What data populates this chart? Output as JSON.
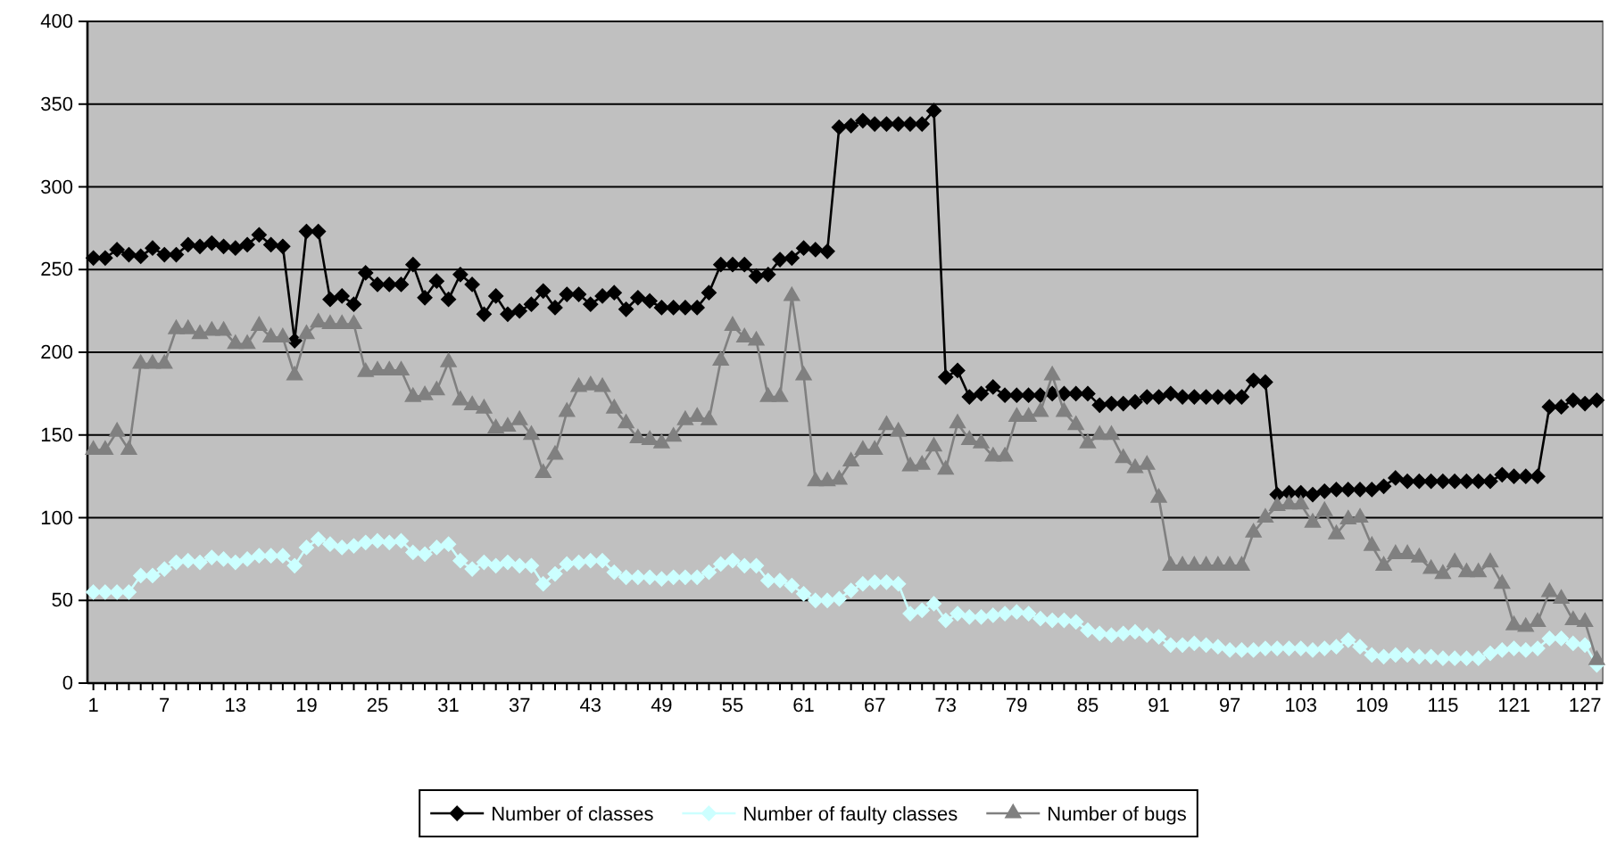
{
  "chart_data": {
    "type": "line",
    "categories": [
      "1",
      null,
      null,
      null,
      null,
      null,
      "7",
      null,
      null,
      null,
      null,
      null,
      "13",
      null,
      null,
      null,
      null,
      null,
      "19",
      null,
      null,
      null,
      null,
      null,
      "25",
      null,
      null,
      null,
      null,
      null,
      "31",
      null,
      null,
      null,
      null,
      null,
      "37",
      null,
      null,
      null,
      null,
      null,
      "43",
      null,
      null,
      null,
      null,
      null,
      "49",
      null,
      null,
      null,
      null,
      null,
      "55",
      null,
      null,
      null,
      null,
      null,
      "61",
      null,
      null,
      null,
      null,
      null,
      "67",
      null,
      null,
      null,
      null,
      null,
      "73",
      null,
      null,
      null,
      null,
      null,
      "79",
      null,
      null,
      null,
      null,
      null,
      "85",
      null,
      null,
      null,
      null,
      null,
      "91",
      null,
      null,
      null,
      null,
      null,
      "97",
      null,
      null,
      null,
      null,
      null,
      "103",
      null,
      null,
      null,
      null,
      null,
      "109",
      null,
      null,
      null,
      null,
      null,
      "115",
      null,
      null,
      null,
      null,
      null,
      "121",
      null,
      null,
      null,
      null,
      null,
      "127",
      null
    ],
    "series": [
      {
        "name": "Number of classes",
        "color": "#000000",
        "marker": "diamond",
        "values": [
          257,
          257,
          262,
          259,
          258,
          263,
          259,
          259,
          265,
          264,
          266,
          264,
          263,
          265,
          271,
          265,
          264,
          207,
          273,
          273,
          232,
          234,
          229,
          248,
          241,
          241,
          241,
          253,
          233,
          243,
          232,
          247,
          241,
          223,
          234,
          223,
          225,
          229,
          237,
          227,
          235,
          235,
          229,
          234,
          236,
          226,
          233,
          231,
          227,
          227,
          227,
          227,
          236,
          253,
          253,
          253,
          246,
          247,
          256,
          257,
          263,
          262,
          261,
          336,
          337,
          340,
          338,
          338,
          338,
          338,
          338,
          346,
          185,
          189,
          173,
          175,
          179,
          174,
          174,
          174,
          174,
          175,
          175,
          175,
          175,
          168,
          169,
          169,
          170,
          173,
          173,
          175,
          173,
          173,
          173,
          173,
          173,
          173,
          183,
          182,
          114,
          115,
          115,
          114,
          116,
          117,
          117,
          117,
          117,
          119,
          124,
          122,
          122,
          122,
          122,
          122,
          122,
          122,
          122,
          126,
          125,
          125,
          125,
          167,
          167,
          171,
          169,
          171
        ]
      },
      {
        "name": "Number of faulty classes",
        "color": "#ccffff",
        "marker": "diamond",
        "values": [
          55,
          55,
          55,
          55,
          65,
          65,
          69,
          73,
          74,
          73,
          76,
          75,
          73,
          75,
          77,
          77,
          77,
          71,
          82,
          87,
          84,
          82,
          83,
          85,
          86,
          85,
          86,
          79,
          78,
          82,
          84,
          74,
          69,
          73,
          71,
          73,
          71,
          71,
          60,
          66,
          72,
          73,
          74,
          74,
          67,
          64,
          64,
          64,
          63,
          64,
          64,
          64,
          67,
          72,
          74,
          71,
          71,
          62,
          62,
          59,
          54,
          50,
          50,
          51,
          56,
          60,
          61,
          61,
          60,
          42,
          44,
          48,
          38,
          42,
          40,
          40,
          41,
          42,
          43,
          42,
          39,
          38,
          38,
          37,
          32,
          30,
          29,
          30,
          31,
          29,
          28,
          23,
          23,
          24,
          23,
          22,
          20,
          20,
          20,
          21,
          21,
          21,
          21,
          20,
          21,
          22,
          26,
          22,
          17,
          16,
          17,
          17,
          16,
          16,
          15,
          15,
          15,
          15,
          18,
          20,
          21,
          20,
          21,
          27,
          27,
          24,
          23,
          11
        ]
      },
      {
        "name": "Number of bugs",
        "color": "#808080",
        "marker": "triangle",
        "values": [
          141,
          141,
          152,
          141,
          193,
          193,
          193,
          214,
          214,
          211,
          213,
          213,
          205,
          205,
          216,
          209,
          209,
          186,
          211,
          218,
          217,
          217,
          217,
          188,
          189,
          189,
          189,
          173,
          174,
          177,
          194,
          171,
          168,
          166,
          154,
          155,
          159,
          150,
          127,
          138,
          164,
          179,
          180,
          179,
          166,
          157,
          148,
          147,
          145,
          149,
          159,
          161,
          159,
          195,
          216,
          209,
          207,
          173,
          173,
          234,
          186,
          122,
          122,
          123,
          134,
          141,
          141,
          156,
          152,
          131,
          132,
          143,
          129,
          157,
          147,
          145,
          137,
          137,
          161,
          161,
          164,
          186,
          164,
          156,
          145,
          150,
          150,
          136,
          130,
          132,
          112,
          71,
          71,
          71,
          71,
          71,
          71,
          71,
          91,
          100,
          107,
          108,
          108,
          97,
          104,
          90,
          99,
          100,
          83,
          71,
          78,
          78,
          76,
          69,
          66,
          73,
          67,
          67,
          73,
          60,
          35,
          34,
          37,
          55,
          51,
          38,
          37,
          14
        ]
      }
    ],
    "ylim": [
      0,
      400
    ],
    "yticks": [
      0,
      50,
      100,
      150,
      200,
      250,
      300,
      350,
      400
    ],
    "grid": "y",
    "legend": "bottom",
    "line_style": "solid"
  }
}
